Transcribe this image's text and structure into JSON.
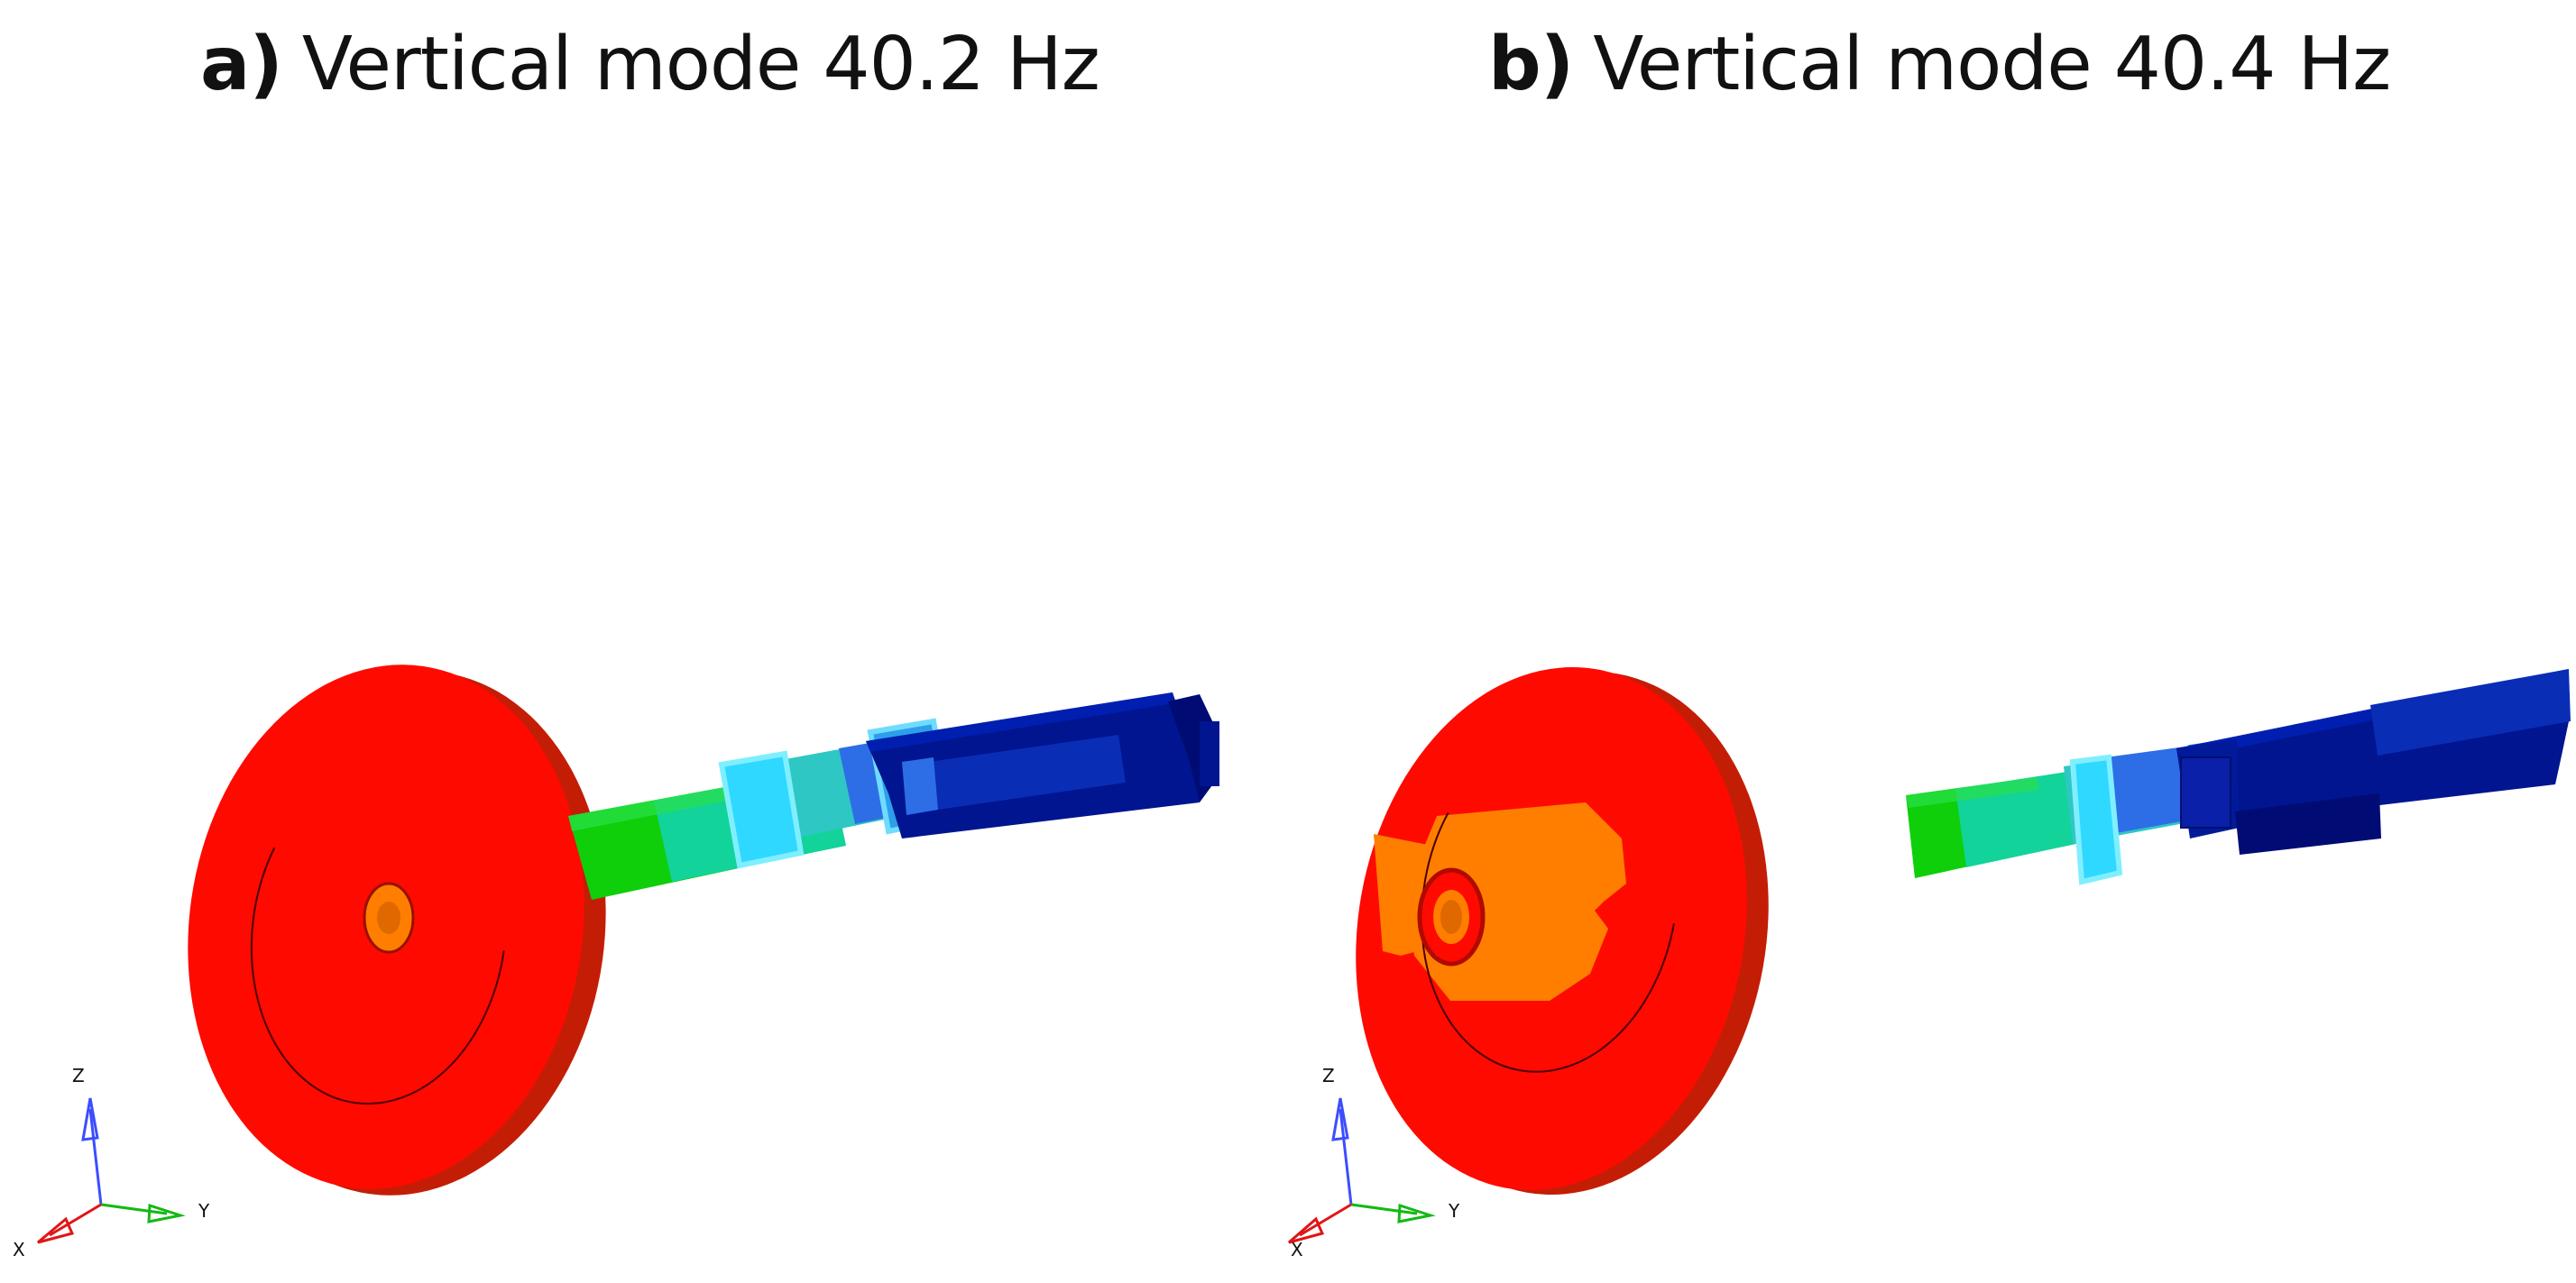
{
  "panels": [
    {
      "letter": "a)",
      "title": "Vertical mode 40.2 Hz",
      "axes": {
        "x": "X",
        "y": "Y",
        "z": "Z"
      }
    },
    {
      "letter": "b)",
      "title": "Vertical mode 40.4 Hz",
      "axes": {
        "x": "X",
        "y": "Y",
        "z": "Z"
      }
    }
  ],
  "colors": {
    "red": "#ff0a00",
    "dark_red": "#c41d06",
    "orange": "#ff7e00",
    "green": "#0ecf0a",
    "teal": "#12d39a",
    "cyan": "#2fd8ff",
    "blue": "#2d6ee6",
    "navy": "#00158f",
    "dark_navy": "#000c73"
  }
}
